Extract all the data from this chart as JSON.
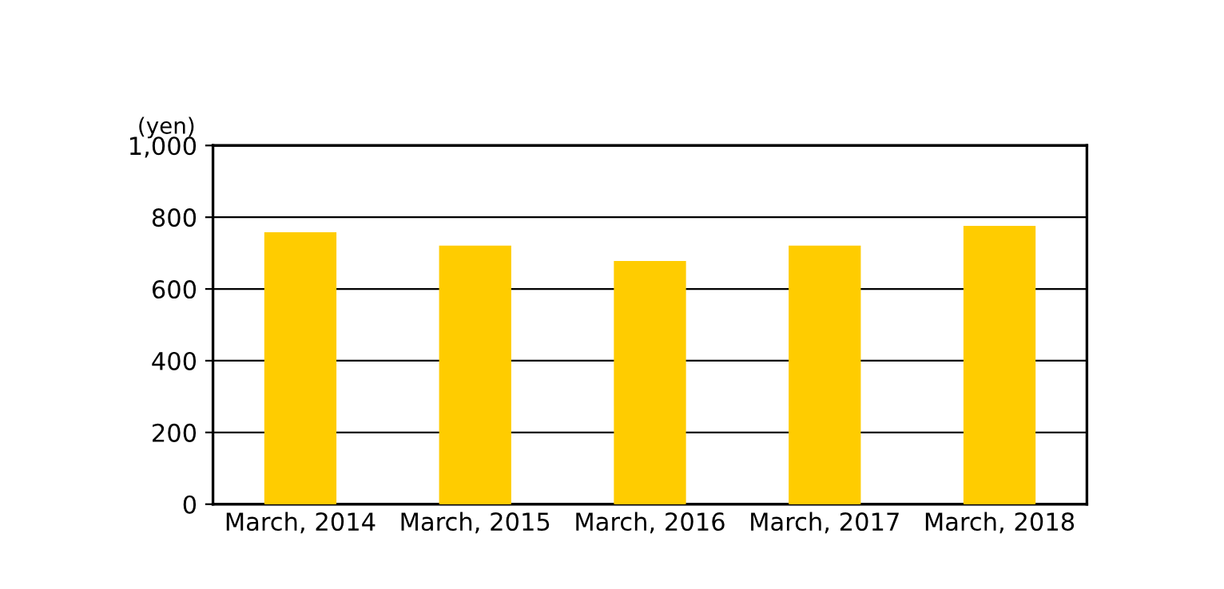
{
  "chart_data": {
    "type": "bar",
    "ylabel": "(yen)",
    "categories": [
      "March, 2014",
      "March, 2015",
      "March, 2016",
      "March, 2017",
      "March, 2018"
    ],
    "values": [
      755,
      718,
      675,
      718,
      773
    ],
    "color": "#ffcc00",
    "ylim": [
      0,
      1000
    ],
    "yticks": [
      0,
      200,
      400,
      600,
      800,
      {
        "value": 1000,
        "label": "1,000"
      }
    ],
    "grid": "y",
    "legend": false
  }
}
